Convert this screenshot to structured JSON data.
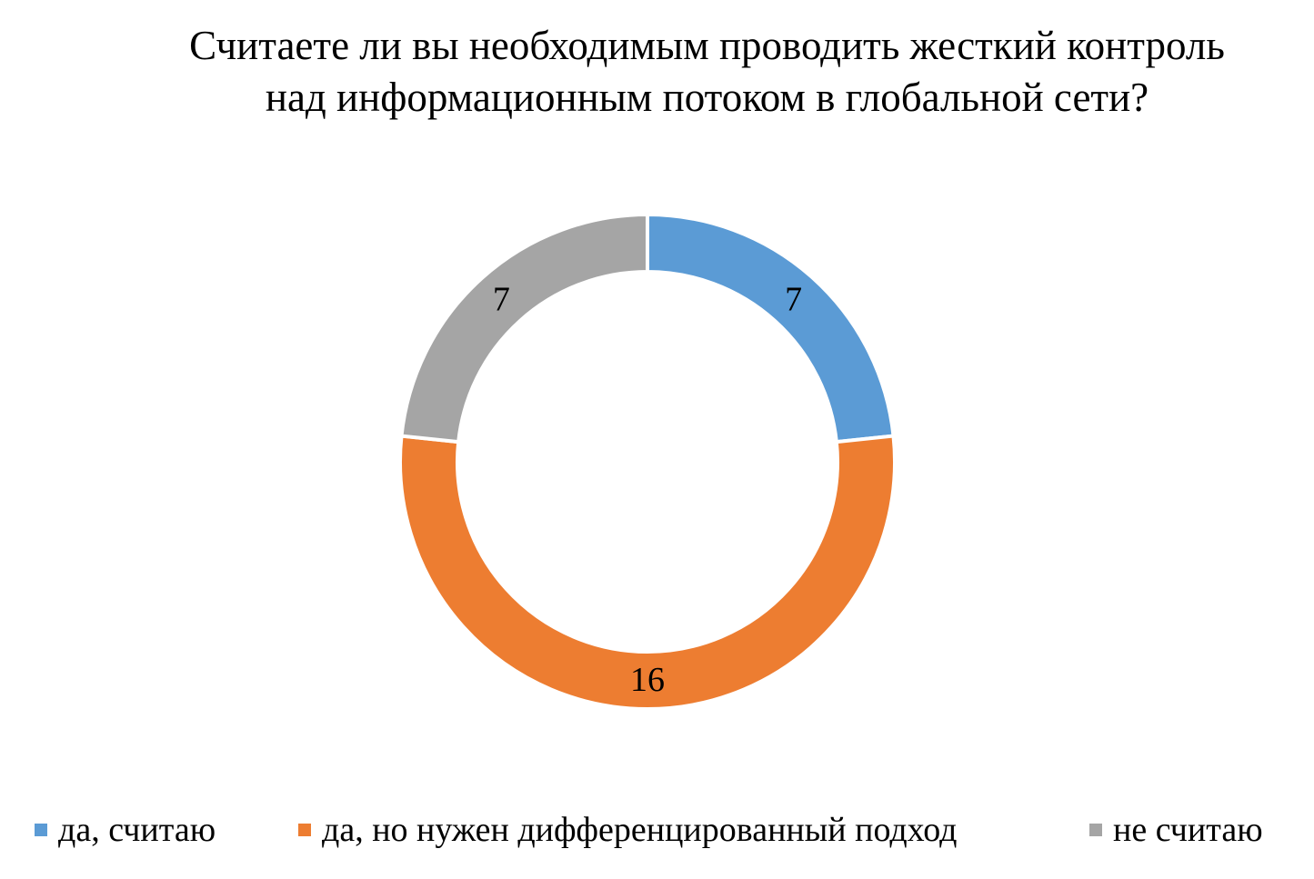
{
  "chart_data": {
    "type": "pie",
    "variant": "donut",
    "title": [
      "Считаете ли вы необходимым проводить жесткий контроль",
      "над информационным потоком в глобальной сети?"
    ],
    "categories": [
      "да, считаю",
      "да, но нужен дифференцированный подход",
      "не считаю"
    ],
    "values": [
      7,
      16,
      7
    ],
    "data_labels": [
      "7",
      "16",
      "7"
    ],
    "colors": [
      "#5B9BD5",
      "#ED7D31",
      "#A5A5A5"
    ],
    "legend_position": "bottom",
    "start_angle": "12 o'clock, clockwise"
  }
}
